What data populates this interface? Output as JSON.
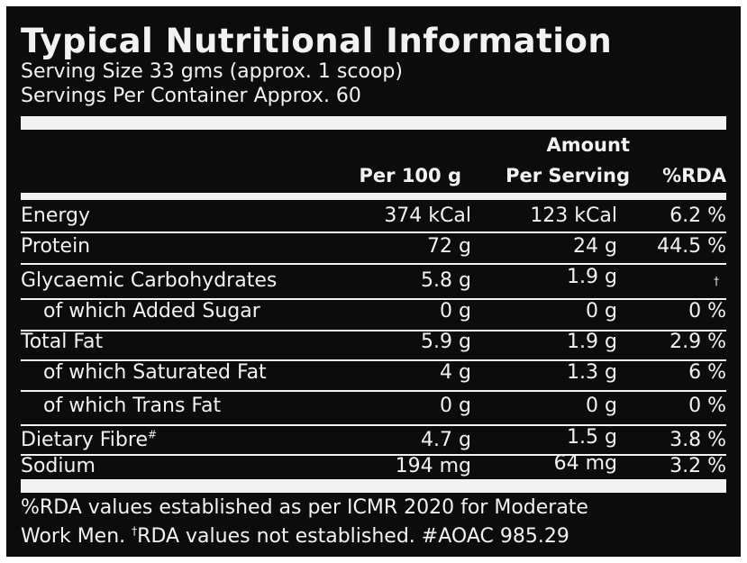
{
  "title": "Typical Nutritional Information",
  "serving_size": "Serving Size 33 gms (approx. 1 scoop)",
  "servings_per_container": "Servings Per Container Approx. 60",
  "headers": {
    "per100": "Per 100 g",
    "amount": "Amount",
    "per_serving": "Per Serving",
    "rda": "%RDA"
  },
  "rows": [
    {
      "label": "Energy",
      "per100": "374 kCal",
      "serving": "123 kCal",
      "rda": "6.2 %"
    },
    {
      "label": "Protein",
      "per100": "72 g",
      "serving": "24 g",
      "rda": "44.5 %"
    },
    {
      "label": "Glycaemic Carbohydrates",
      "per100": "5.8 g",
      "serving": "1.9 g",
      "rda": "†"
    },
    {
      "label": "of which Added Sugar",
      "per100": "0 g",
      "serving": "0 g",
      "rda": "0 %"
    },
    {
      "label": "Total Fat",
      "per100": "5.9 g",
      "serving": "1.9 g",
      "rda": "2.9 %"
    },
    {
      "label": "of which Saturated Fat",
      "per100": "4 g",
      "serving": "1.3 g",
      "rda": "6 %"
    },
    {
      "label": "of which Trans Fat",
      "per100": "0 g",
      "serving": "0 g",
      "rda": "0 %"
    },
    {
      "label": "Dietary Fibre",
      "label_sup": "#",
      "per100": "4.7 g",
      "serving": "1.5 g",
      "rda": "3.8 %"
    },
    {
      "label": "Sodium",
      "per100": "194 mg",
      "serving": "64 mg",
      "rda": "3.2 %"
    }
  ],
  "footer": {
    "line1": "%RDA values established as per ICMR 2020 for Moderate",
    "line2_start": "Work Men. ",
    "line2_dagger": "†",
    "line2_end": "RDA values not established.  #AOAC 985.29"
  },
  "colors": {
    "background": "#0c0c0c",
    "text": "#f2f2f2"
  }
}
